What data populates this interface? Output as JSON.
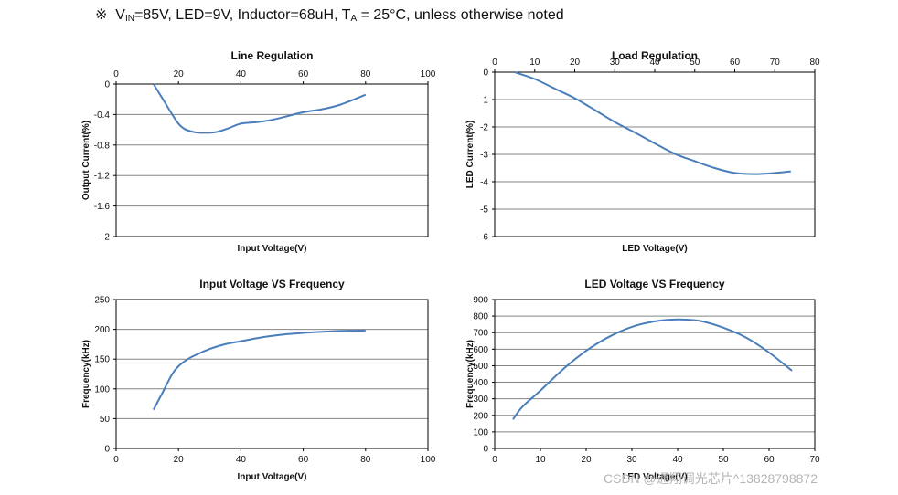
{
  "header": {
    "symbol": "※",
    "v_prefix": "V",
    "v_sub": "IN",
    "v_rest": "=85V, LED=9V, Inductor=68uH, T",
    "t_sub": "A",
    "t_rest": " = 25°C, unless otherwise noted"
  },
  "watermark": "CSDN @通翔调光芯片^13828798872",
  "colors": {
    "series": "#4a7ebb",
    "grid": "#858585",
    "frame": "#000000"
  },
  "chart_data": [
    {
      "type": "line",
      "title": "Line Regulation",
      "xlabel": "Input Voltage(V)",
      "ylabel": "Output Current(%)",
      "x_ticks": [
        0,
        20,
        40,
        60,
        80,
        100
      ],
      "y_ticks": [
        0,
        -0.4,
        -0.8,
        -1.2,
        -1.6,
        -2
      ],
      "x_tick_labels": [
        "0",
        "20",
        "40",
        "60",
        "80",
        "100"
      ],
      "y_tick_labels": [
        "0",
        "-0.4",
        "-0.8",
        "-1.2",
        "-1.6",
        "-2"
      ],
      "xlim": [
        0,
        100
      ],
      "ylim": [
        -2,
        0
      ],
      "x_axis_position": "top",
      "series": [
        {
          "name": "Output Current",
          "x": [
            12,
            15,
            18,
            20,
            22,
            25,
            28,
            32,
            36,
            40,
            45,
            50,
            55,
            60,
            66,
            72,
            80
          ],
          "y": [
            0,
            -0.2,
            -0.4,
            -0.52,
            -0.59,
            -0.63,
            -0.64,
            -0.63,
            -0.58,
            -0.52,
            -0.5,
            -0.47,
            -0.42,
            -0.37,
            -0.33,
            -0.27,
            -0.14
          ]
        }
      ]
    },
    {
      "type": "line",
      "title": "Load Regulation",
      "xlabel": "LED Voltage(V)",
      "ylabel": "LED Current(%)",
      "x_ticks": [
        0,
        10,
        20,
        30,
        40,
        50,
        60,
        70,
        80
      ],
      "y_ticks": [
        0,
        -1,
        -2,
        -3,
        -4,
        -5,
        -6
      ],
      "x_tick_labels": [
        "0",
        "10",
        "20",
        "30",
        "40",
        "50",
        "60",
        "70",
        "80"
      ],
      "y_tick_labels": [
        "0",
        "-1",
        "-2",
        "-3",
        "-4",
        "-5",
        "-6"
      ],
      "xlim": [
        0,
        80
      ],
      "ylim": [
        -6,
        0
      ],
      "x_axis_position": "top",
      "series": [
        {
          "name": "LED Current",
          "x": [
            5,
            10,
            15,
            20,
            25,
            30,
            35,
            40,
            45,
            50,
            55,
            60,
            65,
            70,
            74
          ],
          "y": [
            0,
            -0.25,
            -0.6,
            -0.95,
            -1.38,
            -1.82,
            -2.2,
            -2.6,
            -2.98,
            -3.25,
            -3.5,
            -3.68,
            -3.72,
            -3.68,
            -3.62
          ]
        }
      ]
    },
    {
      "type": "line",
      "title": "Input Voltage VS Frequency",
      "xlabel": "Input Voltage(V)",
      "ylabel": "Frequency(kHz)",
      "x_ticks": [
        0,
        20,
        40,
        60,
        80,
        100
      ],
      "y_ticks": [
        0,
        50,
        100,
        150,
        200,
        250
      ],
      "x_tick_labels": [
        "0",
        "20",
        "40",
        "60",
        "80",
        "100"
      ],
      "y_tick_labels": [
        "0",
        "50",
        "100",
        "150",
        "200",
        "250"
      ],
      "xlim": [
        0,
        100
      ],
      "ylim": [
        0,
        250
      ],
      "x_axis_position": "bottom",
      "series": [
        {
          "name": "Frequency",
          "x": [
            12,
            15,
            18,
            20,
            23,
            26,
            30,
            35,
            40,
            45,
            50,
            55,
            60,
            70,
            80
          ],
          "y": [
            65,
            95,
            125,
            138,
            150,
            158,
            167,
            175,
            180,
            185,
            189,
            192,
            194,
            197,
            198
          ]
        }
      ]
    },
    {
      "type": "line",
      "title": "LED Voltage VS Frequency",
      "xlabel": "LED Voltage(V)",
      "ylabel": "Frequency(kHz)",
      "x_ticks": [
        0,
        10,
        20,
        30,
        40,
        50,
        60,
        70
      ],
      "y_ticks": [
        0,
        100,
        200,
        300,
        400,
        500,
        600,
        700,
        800,
        900
      ],
      "x_tick_labels": [
        "0",
        "10",
        "20",
        "30",
        "40",
        "50",
        "60",
        "70"
      ],
      "y_tick_labels": [
        "0",
        "100",
        "200",
        "300",
        "400",
        "500",
        "600",
        "700",
        "800",
        "900"
      ],
      "xlim": [
        0,
        70
      ],
      "ylim": [
        0,
        900
      ],
      "x_axis_position": "bottom",
      "series": [
        {
          "name": "Frequency",
          "x": [
            4,
            6,
            10,
            15,
            20,
            25,
            30,
            35,
            40,
            45,
            50,
            55,
            60,
            65
          ],
          "y": [
            175,
            250,
            350,
            480,
            590,
            675,
            735,
            768,
            780,
            770,
            730,
            670,
            580,
            470
          ]
        }
      ]
    }
  ]
}
